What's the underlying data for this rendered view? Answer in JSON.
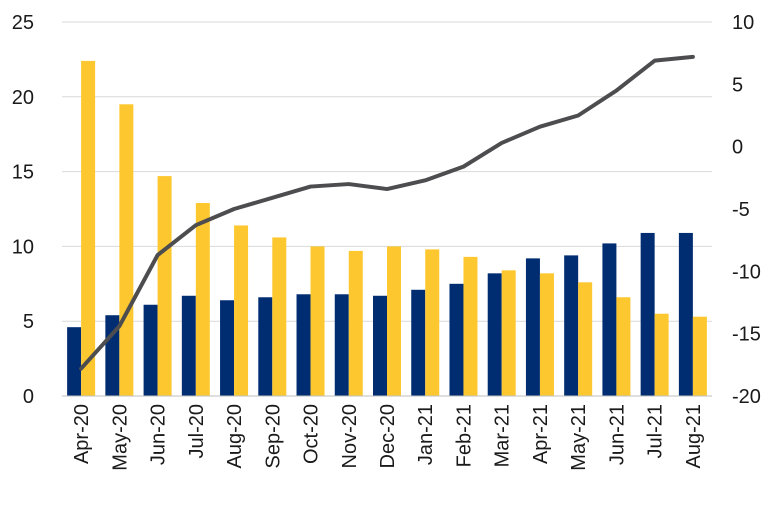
{
  "chart_data": {
    "type": "bar+line",
    "title": "",
    "xlabel": "",
    "ylabel": "",
    "categories": [
      "Apr-20",
      "May-20",
      "Jun-20",
      "Jul-20",
      "Aug-20",
      "Sep-20",
      "Oct-20",
      "Nov-20",
      "Dec-20",
      "Jan-21",
      "Feb-21",
      "Mar-21",
      "Apr-21",
      "May-21",
      "Jun-21",
      "Jul-21",
      "Aug-21"
    ],
    "left_axis": {
      "ylim": [
        0,
        25
      ],
      "ticks": [
        "0",
        "5",
        "10",
        "15",
        "20",
        "25"
      ]
    },
    "right_axis": {
      "ylim": [
        -20,
        10
      ],
      "ticks": [
        "-20",
        "-15",
        "-10",
        "-5",
        "0",
        "5",
        "10"
      ]
    },
    "grid": true,
    "series": [
      {
        "type": "bar",
        "axis": "left",
        "color": "#002d72",
        "values": [
          4.6,
          5.4,
          6.1,
          6.7,
          6.4,
          6.6,
          6.8,
          6.8,
          6.7,
          7.1,
          7.5,
          8.2,
          9.2,
          9.4,
          10.2,
          10.9,
          10.9
        ]
      },
      {
        "type": "bar",
        "axis": "left",
        "color": "#fdc82f",
        "values": [
          22.4,
          19.5,
          14.7,
          12.9,
          11.4,
          10.6,
          10.0,
          9.7,
          10.0,
          9.8,
          9.3,
          8.4,
          8.2,
          7.6,
          6.6,
          5.5,
          5.3
        ]
      },
      {
        "type": "line",
        "axis": "right",
        "color": "#4d4d4f",
        "values": [
          -17.8,
          -14.4,
          -8.7,
          -6.3,
          -5.0,
          -4.1,
          -3.2,
          -3.0,
          -3.4,
          -2.7,
          -1.6,
          0.3,
          1.6,
          2.5,
          4.5,
          6.9,
          7.2
        ]
      }
    ]
  }
}
